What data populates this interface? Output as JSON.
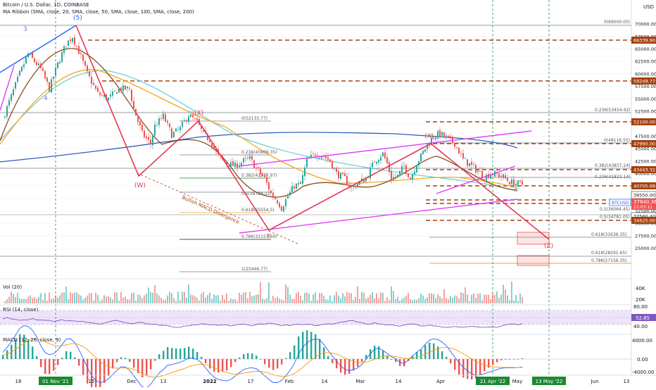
{
  "header": {
    "title": "Bitcoin / U.S. Dollar, 1D, COINBASE",
    "ma_ribbon": "MA Ribbon (SMA, close, 20, SMA, close, 50, SMA, close, 100, SMA, close, 200)",
    "currency": "USD"
  },
  "panes": {
    "volume_label": "Vol (20)",
    "rsi_label": "RSI (14, close)",
    "macd_label": "MACD (12, 26, close, 9)"
  },
  "colors": {
    "up": "#26a69a",
    "down": "#ef5350",
    "pattern": "#e53950",
    "channel": "#e040fb",
    "sma20": "#8d4b1e",
    "sma50": "#f5a623",
    "sma100": "#6fcfd6",
    "sma200": "#2e5fb8",
    "level": "#a5410f",
    "fib": "#787b86",
    "blue_trend": "#2962ff",
    "marker_green": "#1b8a33"
  },
  "chart_data": {
    "type": "candlestick",
    "symbol": "BTCUSD",
    "ylim": [
      20000,
      72000
    ],
    "y_ticks": [
      70000,
      67500,
      65000,
      62500,
      60000,
      57500,
      55000,
      52500,
      50000,
      47500,
      45000,
      42500,
      40000,
      37500,
      35000,
      32500,
      30000,
      27500,
      25000
    ],
    "x_ticks": [
      "18",
      "01 Nov '21",
      "15",
      "Dec",
      "13",
      "2022",
      "17",
      "Feb",
      "14",
      "Mar",
      "14",
      "Apr",
      "21 Apr '22",
      "May",
      "13 May '22",
      "Jun",
      "13"
    ],
    "x_highlighted": [
      "01 Nov '21",
      "21 Apr '22",
      "13 May '22"
    ],
    "current_price": "37840.36",
    "countdown": "21:03:11",
    "price_levels": [
      "66339.90",
      "59249.77",
      "52100.00",
      "47990.00",
      "43443.32",
      "40705.68",
      "38550.00",
      "37560.40",
      "34625.00"
    ],
    "fib_labels": [
      "0(69000.00)",
      "0.236(53454.42)",
      "0(48116.55)",
      "0.382(43837.24)",
      "0.236(41823.14)",
      "0.5(36064.45)",
      "0.5(34781.05)",
      "0.618(31636.35)",
      "0.618(28291.65)",
      "0.786(27156.35)",
      "0(52133.77)",
      "0.236(45609.35)",
      "0.382(41570.97)",
      "0.5(38788.22)",
      "0.618(35554.5)",
      "0.786(31153.60)",
      "1(25446.77)"
    ],
    "wave_labels": [
      "3",
      "4",
      "(5)",
      "(W)",
      "(X)",
      "Y",
      "(X)",
      "(Z)"
    ],
    "annotation": "Bullish MACD Divergence",
    "volume_axis": [
      "40K",
      "20K"
    ],
    "rsi_axis": [
      "80.00",
      "52.85",
      "40.00"
    ],
    "rsi_value": "52.85",
    "macd_axis": [
      "4000.00",
      "0.00",
      "-4000.00"
    ],
    "path": [
      [
        0,
        51000
      ],
      [
        8,
        60000
      ],
      [
        12,
        64000
      ],
      [
        18,
        61000
      ],
      [
        22,
        57000
      ],
      [
        26,
        62000
      ],
      [
        30,
        66000
      ],
      [
        33,
        67500
      ],
      [
        36,
        64500
      ],
      [
        40,
        60000
      ],
      [
        45,
        56000
      ],
      [
        50,
        55000
      ],
      [
        55,
        57000
      ],
      [
        60,
        57000
      ],
      [
        62,
        53000
      ],
      [
        66,
        48000
      ],
      [
        70,
        46000
      ],
      [
        72,
        49500
      ],
      [
        76,
        51500
      ],
      [
        80,
        47800
      ],
      [
        84,
        49000
      ],
      [
        88,
        51800
      ],
      [
        92,
        50300
      ],
      [
        95,
        47800
      ],
      [
        98,
        46800
      ],
      [
        102,
        43500
      ],
      [
        106,
        42000
      ],
      [
        110,
        41500
      ],
      [
        114,
        42500
      ],
      [
        117,
        43000
      ],
      [
        120,
        41000
      ],
      [
        124,
        39000
      ],
      [
        127,
        36000
      ],
      [
        130,
        34500
      ],
      [
        132,
        33100
      ],
      [
        135,
        35500
      ],
      [
        138,
        37500
      ],
      [
        141,
        37800
      ],
      [
        144,
        42500
      ],
      [
        148,
        44000
      ],
      [
        152,
        43500
      ],
      [
        155,
        42500
      ],
      [
        158,
        40000
      ],
      [
        162,
        39000
      ],
      [
        165,
        37000
      ],
      [
        168,
        38000
      ],
      [
        172,
        39000
      ],
      [
        176,
        42500
      ],
      [
        180,
        44000
      ],
      [
        182,
        42000
      ],
      [
        184,
        39000
      ],
      [
        187,
        39500
      ],
      [
        190,
        41500
      ],
      [
        193,
        39000
      ],
      [
        196,
        42000
      ],
      [
        200,
        45000
      ],
      [
        204,
        47500
      ],
      [
        207,
        48000
      ],
      [
        210,
        47200
      ],
      [
        214,
        46000
      ],
      [
        218,
        42800
      ],
      [
        222,
        41500
      ],
      [
        225,
        40500
      ],
      [
        228,
        39200
      ],
      [
        231,
        40000
      ],
      [
        234,
        39800
      ],
      [
        237,
        39300
      ],
      [
        240,
        38300
      ],
      [
        243,
        38000
      ],
      [
        246,
        37840
      ]
    ]
  }
}
